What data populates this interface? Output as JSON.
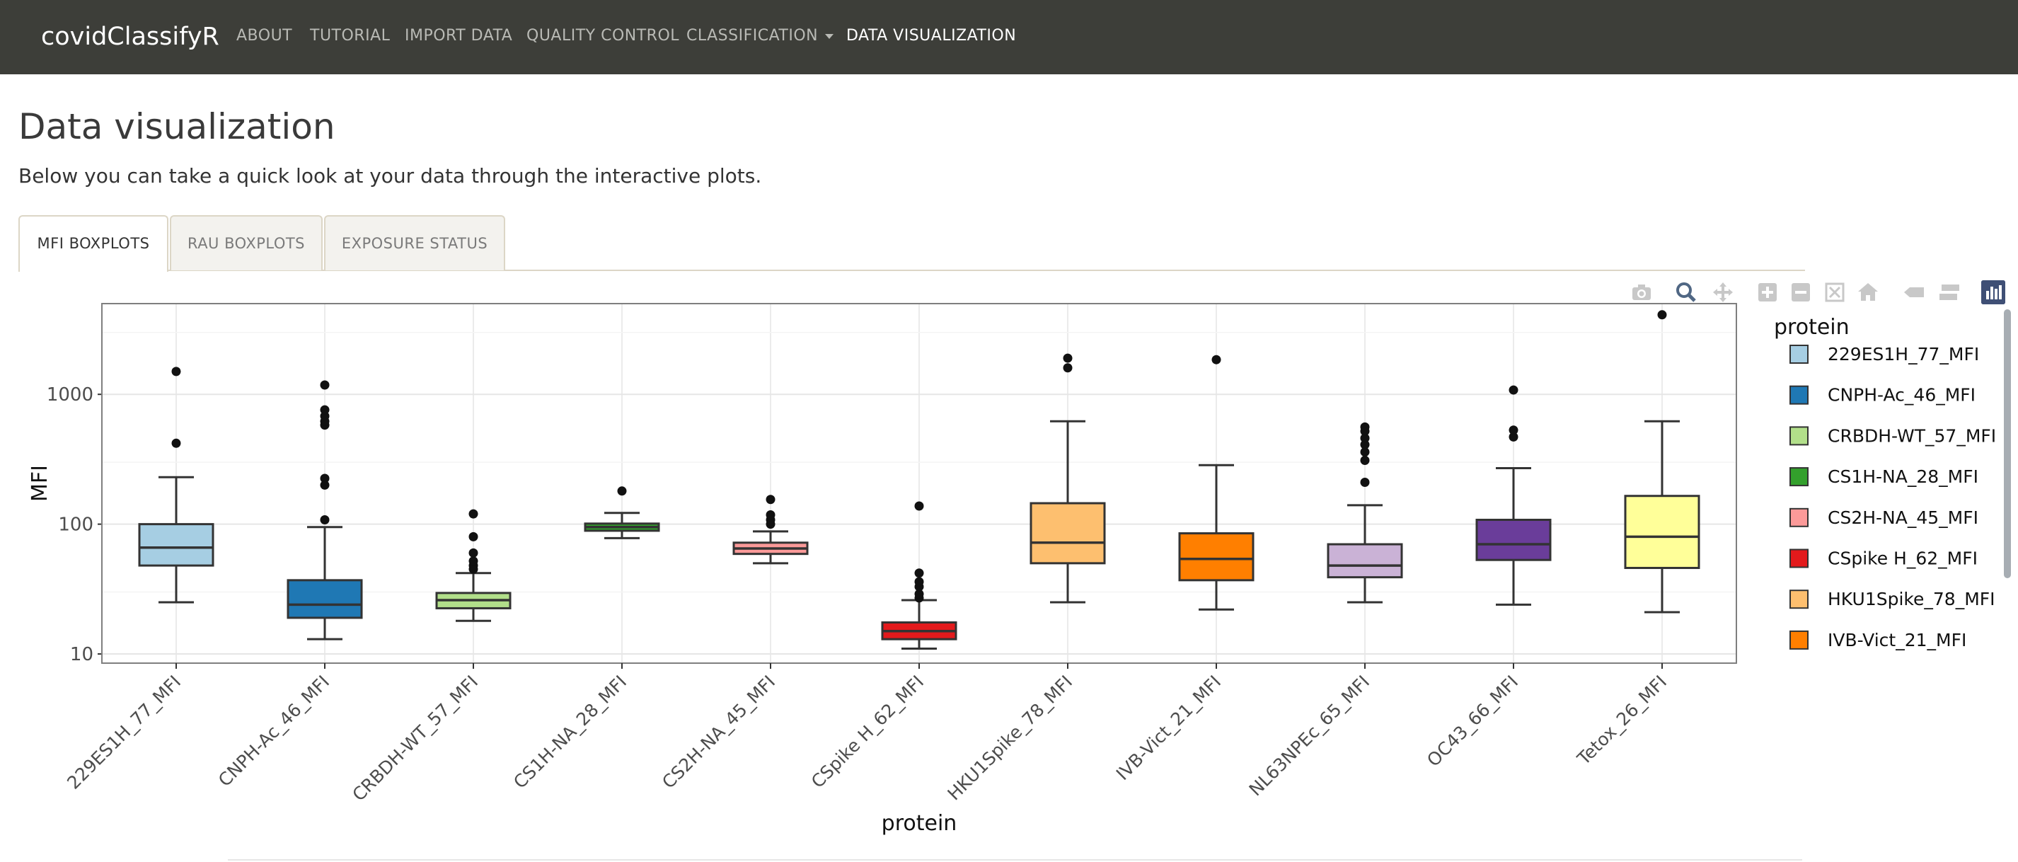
{
  "navbar": {
    "brand": "covidClassifyR",
    "items": [
      {
        "label": "ABOUT"
      },
      {
        "label": "TUTORIAL"
      },
      {
        "label": "IMPORT DATA"
      },
      {
        "label": "QUALITY CONTROL"
      },
      {
        "label": "CLASSIFICATION"
      },
      {
        "label": "DATA VISUALIZATION"
      }
    ]
  },
  "page": {
    "title": "Data visualization",
    "subtitle": "Below you can take a quick look at your data through the interactive plots."
  },
  "tabs": [
    {
      "label": "MFI BOXPLOTS",
      "active": true
    },
    {
      "label": "RAU BOXPLOTS",
      "active": false
    },
    {
      "label": "EXPOSURE STATUS",
      "active": false
    }
  ],
  "modebar": {
    "icons": [
      "camera-icon",
      "zoom-icon",
      "pan-icon",
      "zoom-in-icon",
      "zoom-out-icon",
      "autoscale-icon",
      "reset-axes-icon",
      "spike-lines-icon",
      "compare-hover-icon",
      "plotly-logo-icon"
    ]
  },
  "chart_data": {
    "type": "box",
    "xlabel": "protein",
    "ylabel": "MFI",
    "yscale": "log",
    "ylim": [
      8.5,
      5000
    ],
    "yticks": [
      "10",
      "100",
      "1000"
    ],
    "grid": true,
    "legend_title": "protein",
    "legend_placement": "right",
    "categories": [
      "229ES1H_77_MFI",
      "CNPH-Ac_46_MFI",
      "CRBDH-WT_57_MFI",
      "CS1H-NA_28_MFI",
      "CS2H-NA_45_MFI",
      "CSpike H_62_MFI",
      "HKU1Spike_78_MFI",
      "IVB-Vict_21_MFI",
      "NL63NPEc_65_MFI",
      "OC43_66_MFI",
      "Tetox_26_MFI"
    ],
    "legend_visible": [
      "229ES1H_77_MFI",
      "CNPH-Ac_46_MFI",
      "CRBDH-WT_57_MFI",
      "CS1H-NA_28_MFI",
      "CS2H-NA_45_MFI",
      "CSpike H_62_MFI",
      "HKU1Spike_78_MFI",
      "IVB-Vict_21_MFI"
    ],
    "series": [
      {
        "name": "229ES1H_77_MFI",
        "color": "#a6cee3",
        "whisker_low": 25,
        "q1": 48,
        "median": 66,
        "q3": 100,
        "whisker_high": 230,
        "outliers": [
          420,
          1500
        ]
      },
      {
        "name": "CNPH-Ac_46_MFI",
        "color": "#1f78b4",
        "whisker_low": 13,
        "q1": 19,
        "median": 24,
        "q3": 37,
        "whisker_high": 95,
        "outliers": [
          108,
          200,
          225,
          580,
          620,
          680,
          760,
          1180
        ]
      },
      {
        "name": "CRBDH-WT_57_MFI",
        "color": "#b2df8a",
        "whisker_low": 18,
        "q1": 22.5,
        "median": 26,
        "q3": 29.5,
        "whisker_high": 42,
        "outliers": [
          45,
          48,
          52,
          60,
          80,
          120
        ]
      },
      {
        "name": "CS1H-NA_28_MFI",
        "color": "#33a02c",
        "whisker_low": 78,
        "q1": 89,
        "median": 95,
        "q3": 101,
        "whisker_high": 122,
        "outliers": [
          180
        ]
      },
      {
        "name": "CS2H-NA_45_MFI",
        "color": "#fb9a99",
        "whisker_low": 50,
        "q1": 59,
        "median": 65,
        "q3": 72,
        "whisker_high": 88,
        "outliers": [
          100,
          108,
          118,
          155
        ]
      },
      {
        "name": "CSpike H_62_MFI",
        "color": "#e31a1c",
        "whisker_low": 11,
        "q1": 13,
        "median": 15,
        "q3": 17.5,
        "whisker_high": 26,
        "outliers": [
          27,
          29,
          33,
          36,
          42,
          138
        ]
      },
      {
        "name": "HKU1Spike_78_MFI",
        "color": "#fdbf6f",
        "whisker_low": 25,
        "q1": 50,
        "median": 72,
        "q3": 145,
        "whisker_high": 620,
        "outliers": [
          1600,
          1900
        ]
      },
      {
        "name": "IVB-Vict_21_MFI",
        "color": "#ff7f00",
        "whisker_low": 22,
        "q1": 37,
        "median": 54,
        "q3": 85,
        "whisker_high": 285,
        "outliers": [
          1850
        ]
      },
      {
        "name": "NL63NPEc_65_MFI",
        "color": "#cab2d6",
        "whisker_low": 25,
        "q1": 39,
        "median": 48,
        "q3": 70,
        "whisker_high": 140,
        "outliers": [
          210,
          310,
          360,
          410,
          460,
          520,
          560
        ]
      },
      {
        "name": "OC43_66_MFI",
        "color": "#6a3d9a",
        "whisker_low": 24,
        "q1": 53,
        "median": 70,
        "q3": 108,
        "whisker_high": 270,
        "outliers": [
          470,
          530,
          1080
        ]
      },
      {
        "name": "Tetox_26_MFI",
        "color": "#ffff99",
        "whisker_low": 21,
        "q1": 46,
        "median": 80,
        "q3": 165,
        "whisker_high": 620,
        "outliers": [
          4100
        ]
      }
    ]
  }
}
